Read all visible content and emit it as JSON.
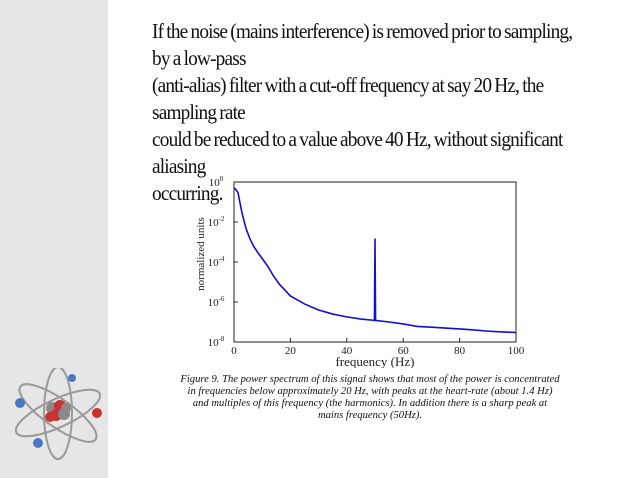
{
  "paragraph": "If the noise (mains interference) is removed prior to sampling, by a low-pass\n(anti-alias) filter with a cut-off frequency at say 20 Hz, the sampling rate\ncould be reduced to a value above 40 Hz, without significant aliasing\noccurring.",
  "caption": "Figure 9. The power spectrum of this signal shows that most of the power is concentrated\nin frequencies below approximately 20 Hz, with peaks at the heart-rate (about 1.4 Hz)\nand multiples of this frequency (the harmonics). In addition there is a sharp peak at\nmains frequency (50Hz).",
  "chart_data": {
    "type": "line",
    "xlabel": "frequency (Hz)",
    "ylabel": "normalized units",
    "xlim": [
      0,
      100
    ],
    "ylim": [
      1e-08,
      1
    ],
    "yscale": "log",
    "x_ticks": [
      0,
      20,
      40,
      60,
      80,
      100
    ],
    "y_ticks": [
      {
        "value": 1e-08,
        "base": "10",
        "exp": "-8"
      },
      {
        "value": 1e-06,
        "base": "10",
        "exp": "-6"
      },
      {
        "value": 0.0001,
        "base": "10",
        "exp": "-4"
      },
      {
        "value": 0.01,
        "base": "10",
        "exp": "-2"
      },
      {
        "value": 1,
        "base": "10",
        "exp": "0"
      }
    ],
    "grid": false,
    "series": [
      {
        "color": "#1010d0",
        "x": [
          0.2,
          1.4,
          2.8,
          4.2,
          5.6,
          7,
          8.4,
          10,
          12,
          14,
          16,
          18,
          20,
          25,
          30,
          35,
          40,
          45,
          49.8,
          50,
          50.2,
          55,
          60,
          65,
          70,
          75,
          80,
          85,
          90,
          95,
          100
        ],
        "y": [
          0.5,
          0.3,
          0.03,
          0.005,
          0.0015,
          0.0006,
          0.0003,
          0.00015,
          6e-05,
          2e-05,
          8e-06,
          4e-06,
          2e-06,
          8e-07,
          4e-07,
          2.5e-07,
          1.8e-07,
          1.4e-07,
          1.2e-07,
          0.0015,
          1.2e-07,
          1e-07,
          8e-08,
          6e-08,
          5.5e-08,
          5e-08,
          4.5e-08,
          4e-08,
          3.5e-08,
          3.2e-08,
          3e-08
        ]
      }
    ]
  },
  "colors": {
    "sidebar": "#e6e6e6",
    "series": "#1010d0"
  },
  "decoration": {
    "icon": "atom-icon"
  }
}
